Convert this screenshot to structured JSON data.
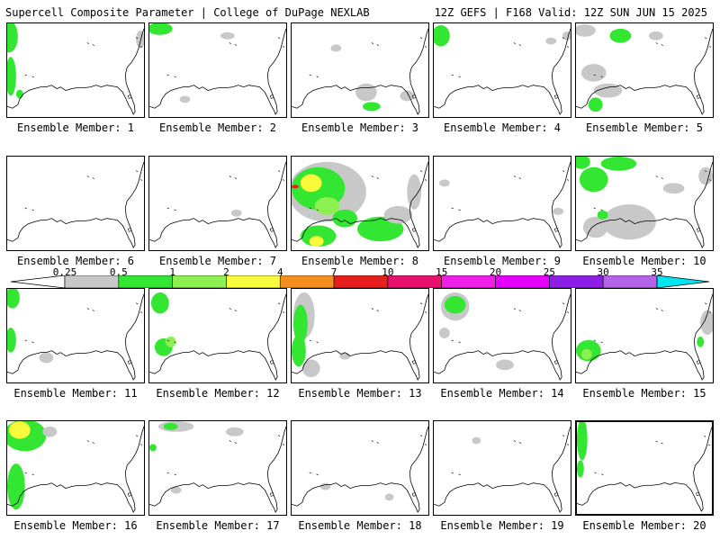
{
  "header": {
    "left": "Supercell Composite Parameter | College of DuPage NEXLAB",
    "right": "12Z GEFS | F168 Valid: 12Z SUN JUN 15 2025"
  },
  "colorbar": {
    "labels": [
      "0.25",
      "0.5",
      "1",
      "2",
      "4",
      "7",
      "10",
      "15",
      "20",
      "25",
      "30",
      "35"
    ],
    "colors": [
      "#c8c8c8",
      "#32e632",
      "#8cf050",
      "#fafa3c",
      "#f58c1e",
      "#e61e1e",
      "#e6126e",
      "#f01ee6",
      "#e600ff",
      "#8c1ee6",
      "#b464e6",
      "#00e6f0"
    ]
  },
  "legend_colors": {
    "low": "#c8c8c8",
    "mid": "#32e632",
    "high": "#8cf050",
    "higher": "#fafa3c",
    "extreme": "#e61e1e"
  },
  "members": [
    {
      "label": "Ensemble Member: 1"
    },
    {
      "label": "Ensemble Member: 2"
    },
    {
      "label": "Ensemble Member: 3"
    },
    {
      "label": "Ensemble Member: 4"
    },
    {
      "label": "Ensemble Member: 5"
    },
    {
      "label": "Ensemble Member: 6"
    },
    {
      "label": "Ensemble Member: 7"
    },
    {
      "label": "Ensemble Member: 8"
    },
    {
      "label": "Ensemble Member: 9"
    },
    {
      "label": "Ensemble Member: 10"
    },
    {
      "label": "Ensemble Member: 11"
    },
    {
      "label": "Ensemble Member: 12"
    },
    {
      "label": "Ensemble Member: 13"
    },
    {
      "label": "Ensemble Member: 14"
    },
    {
      "label": "Ensemble Member: 15"
    },
    {
      "label": "Ensemble Member: 16"
    },
    {
      "label": "Ensemble Member: 17"
    },
    {
      "label": "Ensemble Member: 18"
    },
    {
      "label": "Ensemble Member: 19"
    },
    {
      "label": "Ensemble Member: 20"
    }
  ]
}
